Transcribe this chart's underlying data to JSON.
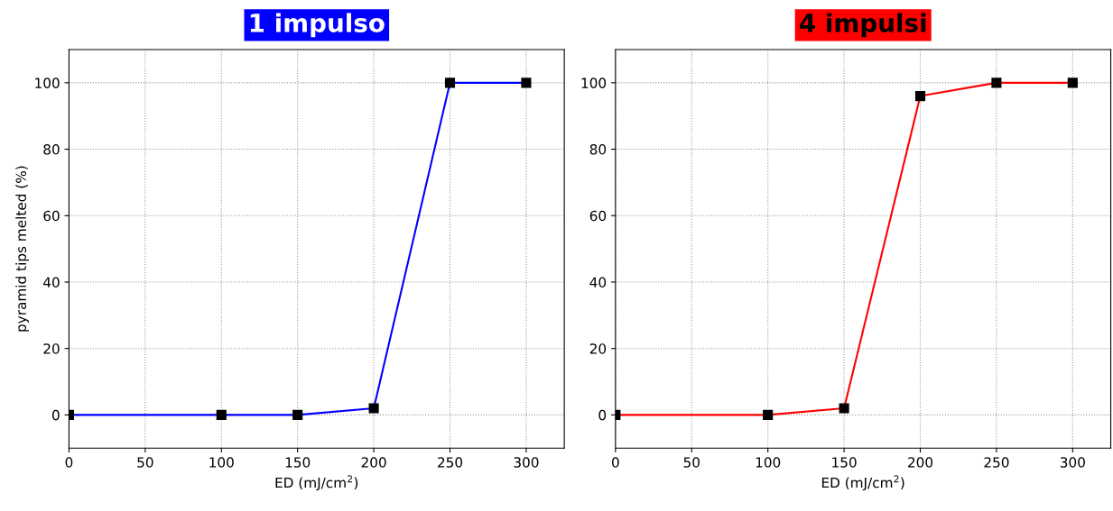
{
  "chart_data": [
    {
      "type": "line",
      "title": "1 impulso",
      "xlabel": "ED (mJ/cm$^{2}$)",
      "ylabel": "pyramid tips melted (%)",
      "x": [
        0,
        100,
        150,
        200,
        250,
        300
      ],
      "series": [
        {
          "color": "#0000ff",
          "values": [
            0,
            0,
            0,
            2,
            100,
            100
          ]
        }
      ],
      "xlim": [
        0,
        325
      ],
      "xticks": [
        0,
        50,
        100,
        150,
        200,
        250,
        300
      ],
      "ylim": [
        -10,
        110
      ],
      "yticks": [
        0,
        20,
        40,
        60,
        80,
        100
      ],
      "grid": true,
      "marker": "square",
      "line_style": "solid"
    },
    {
      "type": "line",
      "title": "4 impulsi",
      "xlabel": "ED (mJ/cm$^{2}$)",
      "x": [
        0,
        100,
        150,
        200,
        250,
        300
      ],
      "series": [
        {
          "color": "#ff0000",
          "values": [
            0,
            0,
            2,
            96,
            100,
            100
          ]
        }
      ],
      "xlim": [
        0,
        325
      ],
      "xticks": [
        0,
        50,
        100,
        150,
        200,
        250,
        300
      ],
      "ylim": [
        -10,
        110
      ],
      "yticks": [
        0,
        20,
        40,
        60,
        80,
        100
      ],
      "grid": true,
      "marker": "square",
      "line_style": "solid"
    }
  ]
}
